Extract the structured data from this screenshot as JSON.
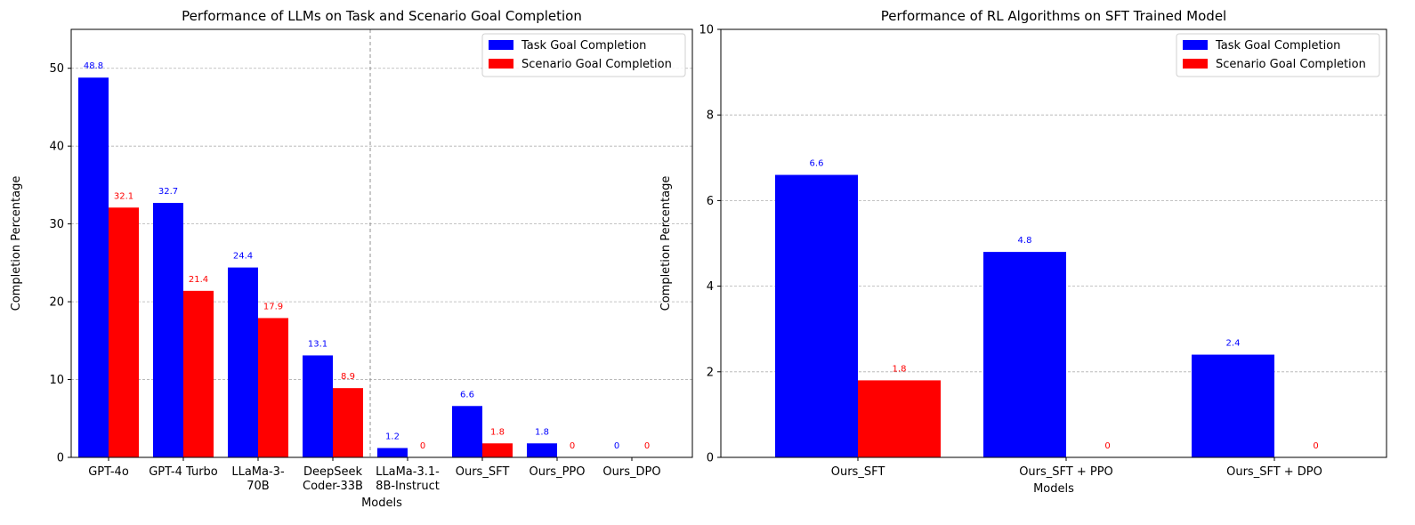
{
  "chart_data": [
    {
      "type": "bar",
      "title": "Performance of LLMs on Task and Scenario Goal Completion",
      "xlabel": "Models",
      "ylabel": "Completion Percentage",
      "ylim": [
        0,
        55
      ],
      "yticks": [
        0,
        10,
        20,
        30,
        40,
        50
      ],
      "grid": "y-dashed",
      "legend_position": "top-right",
      "categories": [
        "GPT-4o",
        "GPT-4 Turbo",
        "LLaMa-3-\n70B",
        "DeepSeek\nCoder-33B",
        "LLaMa-3.1-\n8B-Instruct",
        "Ours_SFT",
        "Ours_PPO",
        "Ours_DPO"
      ],
      "category_colors": [
        "#000000",
        "#000000",
        "#000000",
        "#000000",
        "#000000",
        "#008000",
        "#000000",
        "#000000"
      ],
      "divider_after_index": 3,
      "series": [
        {
          "name": "Task Goal Completion",
          "color": "#0000ff",
          "values": [
            48.8,
            32.7,
            24.4,
            13.1,
            1.2,
            6.6,
            1.8,
            0
          ]
        },
        {
          "name": "Scenario Goal Completion",
          "color": "#ff0000",
          "values": [
            32.1,
            21.4,
            17.9,
            8.9,
            0,
            1.8,
            0,
            0
          ]
        }
      ]
    },
    {
      "type": "bar",
      "title": "Performance of RL Algorithms on SFT Trained Model",
      "xlabel": "Models",
      "ylabel": "Completion Percentage",
      "ylim": [
        0,
        10
      ],
      "yticks": [
        0,
        2,
        4,
        6,
        8,
        10
      ],
      "grid": "y-dashed",
      "legend_position": "top-right",
      "categories": [
        "Ours_SFT",
        "Ours_SFT + PPO",
        "Ours_SFT + DPO"
      ],
      "category_colors": [
        "#000000",
        "#000000",
        "#000000"
      ],
      "series": [
        {
          "name": "Task Goal Completion",
          "color": "#0000ff",
          "values": [
            6.6,
            4.8,
            2.4
          ]
        },
        {
          "name": "Scenario Goal Completion",
          "color": "#ff0000",
          "values": [
            1.8,
            0,
            0
          ]
        }
      ]
    }
  ]
}
